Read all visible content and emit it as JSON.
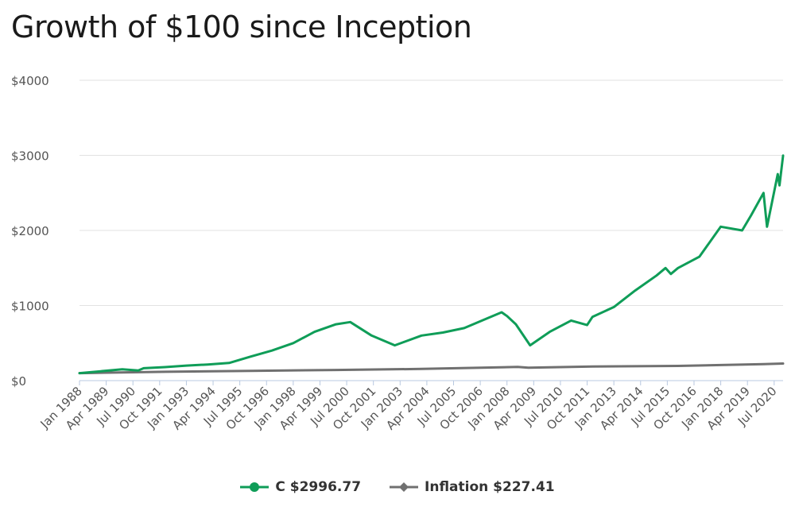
{
  "chart_data": {
    "type": "line",
    "title": "Growth of $100 since Inception",
    "xlabel": "",
    "ylabel": "",
    "ylim": [
      0,
      4000
    ],
    "grid": true,
    "legend_position": "bottom-center",
    "y_ticks": [
      "$0",
      "$1000",
      "$2000",
      "$3000",
      "$4000"
    ],
    "x_ticks": [
      "Jan 1988",
      "Apr 1989",
      "Jul 1990",
      "Oct 1991",
      "Jan 1993",
      "Apr 1994",
      "Jul 1995",
      "Oct 1996",
      "Jan 1998",
      "Apr 1999",
      "Jul 2000",
      "Oct 2001",
      "Jan 2003",
      "Apr 2004",
      "Jul 2005",
      "Oct 2006",
      "Jan 2008",
      "Apr 2009",
      "Jul 2010",
      "Oct 2011",
      "Jan 2013",
      "Apr 2014",
      "Jul 2015",
      "Oct 2016",
      "Jan 2018",
      "Apr 2019",
      "Jul 2020"
    ],
    "x_range": [
      "Jan 1988",
      "Dec 2020"
    ],
    "series": [
      {
        "name": "C",
        "legend_label": "C $2996.77",
        "color": "#0f9d58",
        "marker": "circle",
        "x": [
          "Jan 1988",
          "Jan 1989",
          "Jan 1990",
          "Oct 1990",
          "Jan 1991",
          "Jan 1992",
          "Jan 1993",
          "Jan 1994",
          "Jan 1995",
          "Jan 1996",
          "Jan 1997",
          "Jan 1998",
          "Jan 1999",
          "Jan 2000",
          "Sep 2000",
          "Sep 2001",
          "Oct 2002",
          "Jan 2004",
          "Jan 2005",
          "Jan 2006",
          "Jan 2007",
          "Oct 2007",
          "Jan 2008",
          "Jun 2008",
          "Feb 2009",
          "Jan 2010",
          "Jan 2011",
          "Oct 2011",
          "Jan 2012",
          "Jan 2013",
          "Jan 2014",
          "Jan 2015",
          "Jun 2015",
          "Sep 2015",
          "Jan 2016",
          "Jan 2017",
          "Jan 2018",
          "Jan 2019",
          "Jun 2019",
          "Jan 2020",
          "Mar 2020",
          "Sep 2020",
          "Oct 2020",
          "Dec 2020"
        ],
        "values": [
          100,
          125,
          150,
          135,
          165,
          180,
          200,
          215,
          235,
          320,
          400,
          500,
          650,
          750,
          780,
          600,
          470,
          600,
          640,
          700,
          820,
          910,
          860,
          750,
          470,
          650,
          800,
          740,
          850,
          980,
          1200,
          1400,
          1500,
          1420,
          1500,
          1650,
          2050,
          2000,
          2200,
          2500,
          2050,
          2750,
          2600,
          2997
        ]
      },
      {
        "name": "Inflation",
        "legend_label": "Inflation $227.41",
        "color": "#707070",
        "marker": "diamond",
        "x": [
          "Jan 1988",
          "Jan 1992",
          "Jan 1996",
          "Jan 2000",
          "Jan 2004",
          "Jul 2008",
          "Jan 2009",
          "Jan 2012",
          "Jan 2016",
          "Jan 2020",
          "Dec 2020"
        ],
        "values": [
          100,
          117,
          130,
          142,
          156,
          182,
          173,
          188,
          196,
          220,
          227
        ]
      }
    ]
  }
}
